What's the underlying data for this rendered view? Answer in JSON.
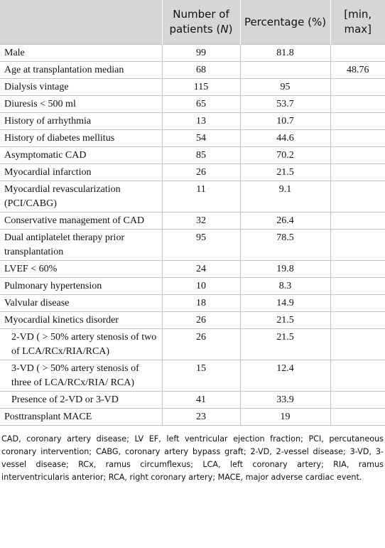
{
  "table": {
    "header": [
      [
        "Number of patients (",
        "N",
        ")"
      ],
      "Percentage (%)",
      "[min, max]"
    ],
    "rows": [
      {
        "label": "Male",
        "n": 99,
        "pct": 81.8,
        "range": null
      },
      {
        "label": "Age at transplantation median",
        "n": 68,
        "pct": null,
        "range": 48.76
      },
      {
        "label": "Dialysis vintage",
        "n": 115,
        "pct": 95,
        "range": null
      },
      {
        "label": "Diuresis < 500 ml",
        "n": 65,
        "pct": 53.7,
        "range": null
      },
      {
        "label": "History of arrhythmia",
        "n": 13,
        "pct": 10.7,
        "range": null
      },
      {
        "label": "History of diabetes mellitus",
        "n": 54,
        "pct": 44.6,
        "range": null
      },
      {
        "label": "Asymptomatic CAD",
        "n": 85,
        "pct": 70.2,
        "range": null
      },
      {
        "label": "Myocardial infarction",
        "n": 26,
        "pct": 21.5,
        "range": null
      },
      {
        "label": "Myocardial revascularization (PCI/CABG)",
        "n": 11,
        "pct": 9.1,
        "range": null
      },
      {
        "label": "Conservative management of CAD",
        "n": 32,
        "pct": 26.4,
        "range": null
      },
      {
        "label": "Dual antiplatelet therapy prior transplantation",
        "n": 95,
        "pct": 78.5,
        "range": null
      },
      {
        "label": "LVEF < 60%",
        "n": 24,
        "pct": 19.8,
        "range": null
      },
      {
        "label": "Pulmonary hypertension",
        "n": 10,
        "pct": 8.3,
        "range": null
      },
      {
        "label": "Valvular disease",
        "n": 18,
        "pct": 14.9,
        "range": null
      },
      {
        "label": "Myocardial kinetics disorder",
        "n": 26,
        "pct": 21.5,
        "range": null
      },
      {
        "label": "2-VD ( > 50% artery stenosis of two of LCA/RCx/RIA/RCA)",
        "n": 26,
        "pct": 21.5,
        "range": null,
        "indent": true
      },
      {
        "label": "3-VD ( > 50% artery stenosis of three of LCA/RCx/RIA/ RCA)",
        "n": 15,
        "pct": 12.4,
        "range": null,
        "indent": true
      },
      {
        "label": "Presence of 2-VD or 3-VD",
        "n": 41,
        "pct": 33.9,
        "range": null,
        "indent": true
      },
      {
        "label": "Posttransplant MACE",
        "n": 23,
        "pct": 19,
        "range": null
      }
    ],
    "footnote": "CAD, coronary artery disease; LV EF, left ventricular ejection fraction; PCI, percutaneous coronary intervention; CABG, coronary artery bypass graft; 2-VD, 2-vessel disease; 3-VD, 3-vessel disease; RCx, ramus circumflexus; LCA, left coronary artery; RIA, ramus interventricularis anterior; RCA, right coronary artery; MACE, major adverse cardiac event."
  }
}
